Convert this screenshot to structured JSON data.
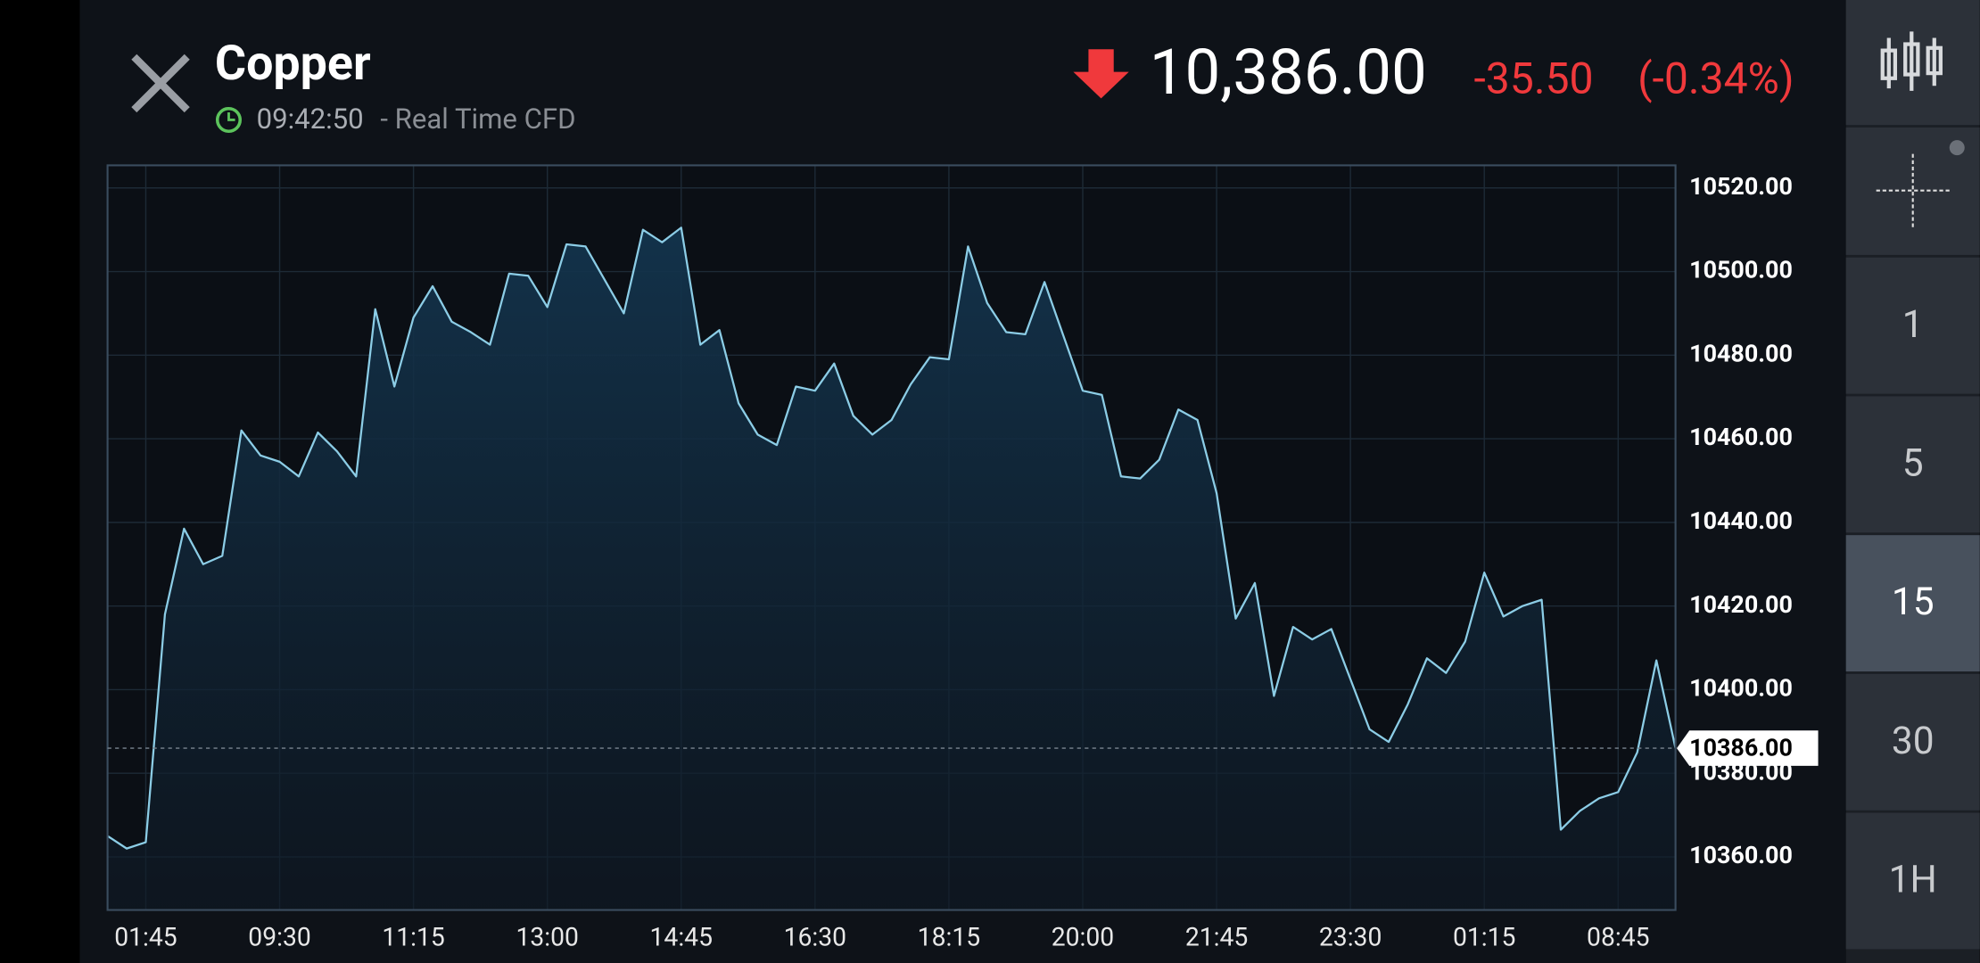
{
  "header": {
    "title": "Copper",
    "time": "09:42:50",
    "subtitle": "- Real Time CFD",
    "price": "10,386.00",
    "change": "-35.50",
    "change_pct": "(-0.34%)"
  },
  "sidebar": {
    "intervals": [
      "1",
      "5",
      "15",
      "30",
      "1H"
    ],
    "selected": "15"
  },
  "chart_data": {
    "type": "area",
    "categories": [
      null,
      null,
      "01:45",
      null,
      null,
      null,
      null,
      null,
      null,
      "09:30",
      null,
      null,
      null,
      null,
      null,
      null,
      "11:15",
      null,
      null,
      null,
      null,
      null,
      null,
      "13:00",
      null,
      null,
      null,
      null,
      null,
      null,
      "14:45",
      null,
      null,
      null,
      null,
      null,
      null,
      "16:30",
      null,
      null,
      null,
      null,
      null,
      null,
      "18:15",
      null,
      null,
      null,
      null,
      null,
      null,
      "20:00",
      null,
      null,
      null,
      null,
      null,
      null,
      "21:45",
      null,
      null,
      null,
      null,
      null,
      null,
      "23:30",
      null,
      null,
      null,
      null,
      null,
      null,
      "01:15",
      null,
      null,
      null,
      null,
      null,
      null,
      "08:45",
      null,
      null,
      null
    ],
    "values": [
      10365,
      10362,
      10363.5,
      10418,
      10438.5,
      10430,
      10432,
      10462,
      10456,
      10454.5,
      10451,
      10461.5,
      10457,
      10451,
      10491,
      10472.5,
      10489,
      10496.5,
      10488,
      10485.5,
      10482.5,
      10499.5,
      10499,
      10491.5,
      10506.5,
      10506,
      10498,
      10490,
      10510,
      10507,
      10510.5,
      10482.5,
      10486,
      10468.5,
      10461,
      10458.5,
      10472.5,
      10471.5,
      10478,
      10465.5,
      10461,
      10464.5,
      10473,
      10479.5,
      10479,
      10506,
      10492.5,
      10485.5,
      10485,
      10497.5,
      10484.5,
      10471.5,
      10470.5,
      10451,
      10450.5,
      10455,
      10467,
      10464.5,
      10447,
      10417,
      10425.5,
      10398.5,
      10415,
      10412,
      10414.5,
      10402.5,
      10390.5,
      10387.5,
      10396.5,
      10407.5,
      10404,
      10411.5,
      10428,
      10417.5,
      10420,
      10421.5,
      10366.5,
      10371,
      10374,
      10375.5,
      10385,
      10407,
      10386
    ],
    "color": "#8ccde6",
    "ylim": [
      10347.3,
      10525.4
    ],
    "yticks": [
      {
        "value": 10360,
        "label": "10360.00"
      },
      {
        "value": 10380,
        "label": "10380.00"
      },
      {
        "value": 10400,
        "label": "10400.00"
      },
      {
        "value": 10420,
        "label": "10420.00"
      },
      {
        "value": 10440,
        "label": "10440.00"
      },
      {
        "value": 10460,
        "label": "10460.00"
      },
      {
        "value": 10480,
        "label": "10480.00"
      },
      {
        "value": 10500,
        "label": "10500.00"
      },
      {
        "value": 10520,
        "label": "10520.00"
      }
    ],
    "last_value": {
      "value": 10386,
      "label": "10386.00"
    },
    "grid": true
  }
}
